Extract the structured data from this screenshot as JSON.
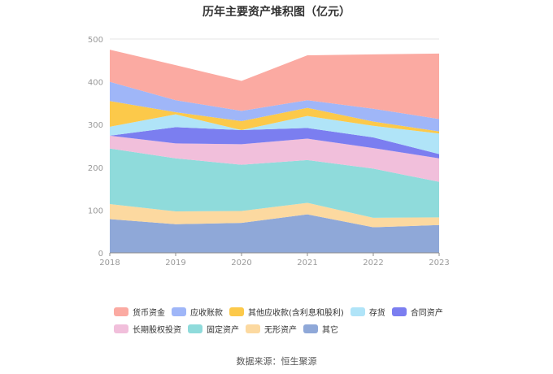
{
  "source_label": "数据来源：恒生聚源",
  "chart_data": {
    "type": "area",
    "stacked": true,
    "title": "历年主要资产堆积图（亿元）",
    "xlabel": "",
    "ylabel": "",
    "x": [
      "2018",
      "2019",
      "2020",
      "2021",
      "2022",
      "2023"
    ],
    "ylim": [
      0,
      500
    ],
    "yticks": [
      0,
      100,
      200,
      300,
      400,
      500
    ],
    "grid": true,
    "legend_position": "bottom",
    "series": [
      {
        "name": "其它",
        "color": "#8fa8d8",
        "values": [
          79,
          67,
          70,
          90,
          60,
          65
        ]
      },
      {
        "name": "无形资产",
        "color": "#fcd9a0",
        "values": [
          35,
          30,
          28,
          27,
          22,
          18
        ]
      },
      {
        "name": "固定资产",
        "color": "#8fdbdb",
        "values": [
          130,
          124,
          108,
          100,
          115,
          83
        ]
      },
      {
        "name": "长期股权投资",
        "color": "#f1bfdb",
        "values": [
          30,
          35,
          48,
          50,
          48,
          55
        ]
      },
      {
        "name": "合同资产",
        "color": "#7b7ef0",
        "values": [
          0,
          38,
          33,
          25,
          25,
          10
        ]
      },
      {
        "name": "存货",
        "color": "#b0e4f8",
        "values": [
          21,
          30,
          0,
          28,
          27,
          48
        ]
      },
      {
        "name": "其他应收款(含利息和股利)",
        "color": "#fcc94a",
        "values": [
          60,
          5,
          21,
          19,
          10,
          5
        ]
      },
      {
        "name": "应收账款",
        "color": "#9fb6f8",
        "values": [
          45,
          28,
          24,
          18,
          30,
          29
        ]
      },
      {
        "name": "货币资金",
        "color": "#fbaaa2",
        "values": [
          75,
          82,
          70,
          105,
          127,
          153
        ]
      }
    ],
    "legend_order": [
      "货币资金",
      "应收账款",
      "其他应收款(含利息和股利)",
      "存货",
      "合同资产",
      "长期股权投资",
      "固定资产",
      "无形资产",
      "其它"
    ]
  }
}
